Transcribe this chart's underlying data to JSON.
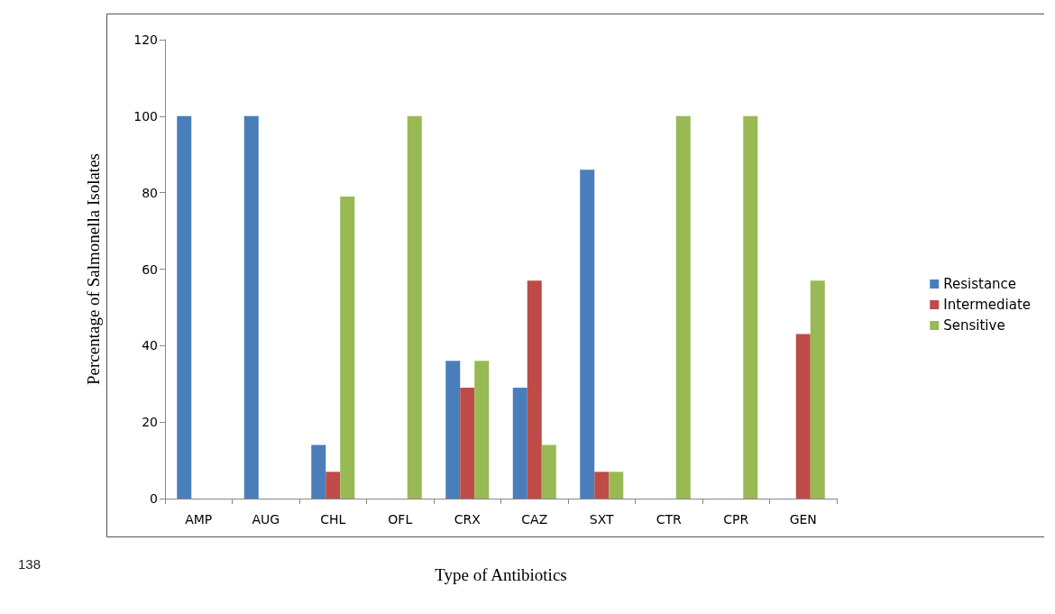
{
  "chart_data": {
    "type": "bar",
    "xlabel": "Type of Antibiotics",
    "ylabel": "Percentage of Salmonella Isolates",
    "categories": [
      "AMP",
      "AUG",
      "CHL",
      "OFL",
      "CRX",
      "CAZ",
      "SXT",
      "CTR",
      "CPR",
      "GEN"
    ],
    "series": [
      {
        "name": "Resistance",
        "color": "#4a7ebb",
        "values": [
          100,
          100,
          14,
          0,
          36,
          29,
          86,
          0,
          0,
          0
        ]
      },
      {
        "name": "Intermediate",
        "color": "#be4b48",
        "values": [
          0,
          0,
          7,
          0,
          29,
          57,
          7,
          0,
          0,
          43
        ]
      },
      {
        "name": "Sensitive",
        "color": "#98b954",
        "values": [
          0,
          0,
          79,
          100,
          36,
          14,
          7,
          100,
          100,
          57
        ]
      }
    ],
    "ylim": [
      0,
      120
    ],
    "yticks": [
      0,
      20,
      40,
      60,
      80,
      100,
      120
    ],
    "grid": false,
    "legend": "right",
    "annotations": [
      "138"
    ]
  }
}
